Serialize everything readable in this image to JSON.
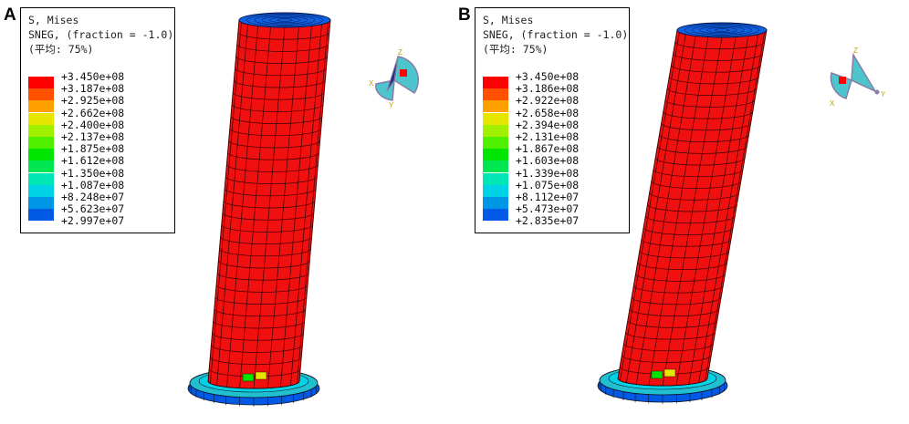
{
  "panels": [
    {
      "letter": "A",
      "legend": {
        "title": "S, Mises",
        "subtitle": "SNEG, (fraction = -1.0)",
        "average": "(平均: 75%)",
        "labels": [
          "+3.450e+08",
          "+3.187e+08",
          "+2.925e+08",
          "+2.662e+08",
          "+2.400e+08",
          "+2.137e+08",
          "+1.875e+08",
          "+1.612e+08",
          "+1.350e+08",
          "+1.087e+08",
          "+8.248e+07",
          "+5.623e+07",
          "+2.997e+07"
        ]
      },
      "triad": {
        "axes": [
          "Z",
          "X",
          "Y"
        ]
      }
    },
    {
      "letter": "B",
      "legend": {
        "title": "S, Mises",
        "subtitle": "SNEG, (fraction = -1.0)",
        "average": "(平均: 75%)",
        "labels": [
          "+3.450e+08",
          "+3.186e+08",
          "+2.922e+08",
          "+2.658e+08",
          "+2.394e+08",
          "+2.131e+08",
          "+1.867e+08",
          "+1.603e+08",
          "+1.339e+08",
          "+1.075e+08",
          "+8.112e+07",
          "+5.473e+07",
          "+2.835e+07"
        ]
      },
      "triad": {
        "axes": [
          "Z",
          "X",
          "Y"
        ]
      }
    }
  ],
  "colors": {
    "contour": [
      "#ff0000",
      "#ff5000",
      "#ffa000",
      "#e6e600",
      "#a0f000",
      "#50f000",
      "#00e600",
      "#00e650",
      "#00e6b4",
      "#00d2e6",
      "#0096e6",
      "#005ae6",
      "#0000f0"
    ],
    "column": "#f01010",
    "mesh_line": "#3a0000",
    "cap": "#1060e0",
    "base_ring": "#20c0d0",
    "triad_fill": "#4cc6cc",
    "triad_edge": "#8a7aa6",
    "triad_marker": "#ff0000"
  }
}
